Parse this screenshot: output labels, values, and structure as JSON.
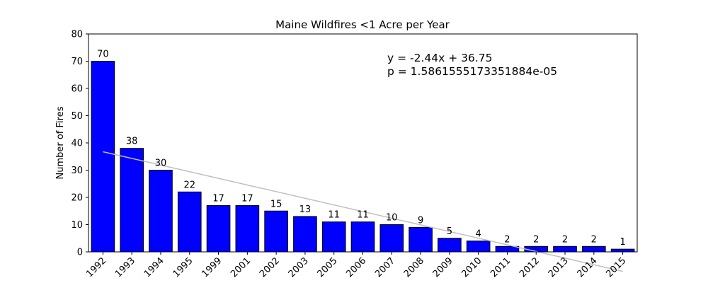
{
  "chart_data": {
    "type": "bar",
    "title": "Maine Wildfires <1 Acre per Year",
    "xlabel": "",
    "ylabel": "Number of Fires",
    "categories": [
      "1992",
      "1993",
      "1994",
      "1995",
      "1999",
      "2001",
      "2002",
      "2003",
      "2005",
      "2006",
      "2007",
      "2008",
      "2009",
      "2010",
      "2011",
      "2012",
      "2013",
      "2014",
      "2015"
    ],
    "values": [
      70,
      38,
      30,
      22,
      17,
      17,
      15,
      13,
      11,
      11,
      10,
      9,
      5,
      4,
      2,
      2,
      2,
      2,
      1
    ],
    "ylim": [
      0,
      80
    ],
    "yticks": [
      0,
      10,
      20,
      30,
      40,
      50,
      60,
      70,
      80
    ],
    "grid": false,
    "bar_color": "#0000ff",
    "bar_edge_color": "#000000",
    "trendline": {
      "slope": -2.44,
      "intercept": 36.75,
      "color": "#bfbfbf"
    },
    "annotations": [
      "y = -2.44x + 36.75",
      "p = 1.5861555173351884e-05"
    ]
  }
}
